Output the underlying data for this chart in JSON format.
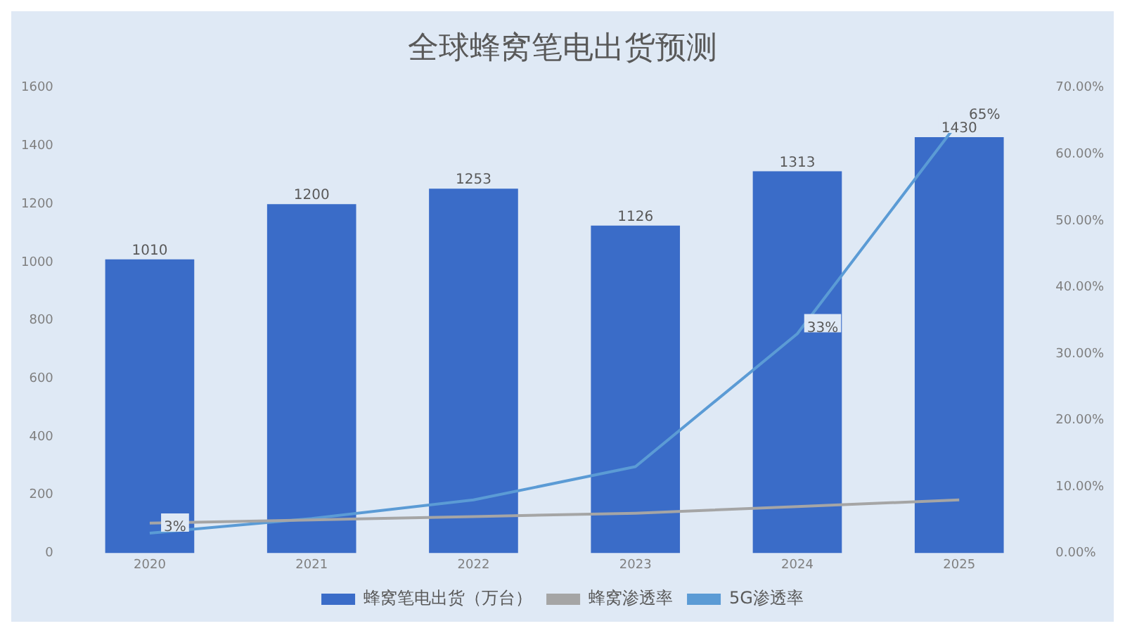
{
  "chart_data": {
    "type": "bar",
    "title": "全球蜂窝笔电出货预测",
    "categories": [
      "2020",
      "2021",
      "2022",
      "2023",
      "2024",
      "2025"
    ],
    "series": [
      {
        "name": "蜂窝笔电出货（万台）",
        "color": "#3a6cc8",
        "values": [
          1010,
          1200,
          1253,
          1126,
          1313,
          1430
        ],
        "value_labels": [
          "1010",
          "1200",
          "1253",
          "1126",
          "1313",
          "1430"
        ]
      },
      {
        "name": "蜂窝渗透率",
        "type": "line",
        "axis": "y2",
        "color": "#a5a5a5",
        "values": [
          4.5,
          5,
          5.5,
          6,
          7,
          8
        ]
      },
      {
        "name": "5G渗透率",
        "type": "line",
        "axis": "y2",
        "color": "#5b9bd5",
        "values": [
          3,
          5.2,
          8,
          13,
          33,
          65
        ],
        "value_labels": [
          "3%",
          null,
          null,
          null,
          "33%",
          "65%"
        ]
      }
    ],
    "ylim": [
      0,
      1600
    ],
    "yticks": [
      0,
      200,
      400,
      600,
      800,
      1000,
      1200,
      1400,
      1600
    ],
    "y2lim": [
      0,
      70
    ],
    "y2ticks": [
      {
        "value": 0,
        "label": "0.00%"
      },
      {
        "value": 10,
        "label": "10.00%"
      },
      {
        "value": 20,
        "label": "20.00%"
      },
      {
        "value": 30,
        "label": "30.00%"
      },
      {
        "value": 40,
        "label": "40.00%"
      },
      {
        "value": 50,
        "label": "50.00%"
      },
      {
        "value": 60,
        "label": "60.00%"
      },
      {
        "value": 70,
        "label": "70.00%"
      }
    ],
    "grid": false,
    "legend": "bottom",
    "marker": "none",
    "line_style": "solid"
  }
}
